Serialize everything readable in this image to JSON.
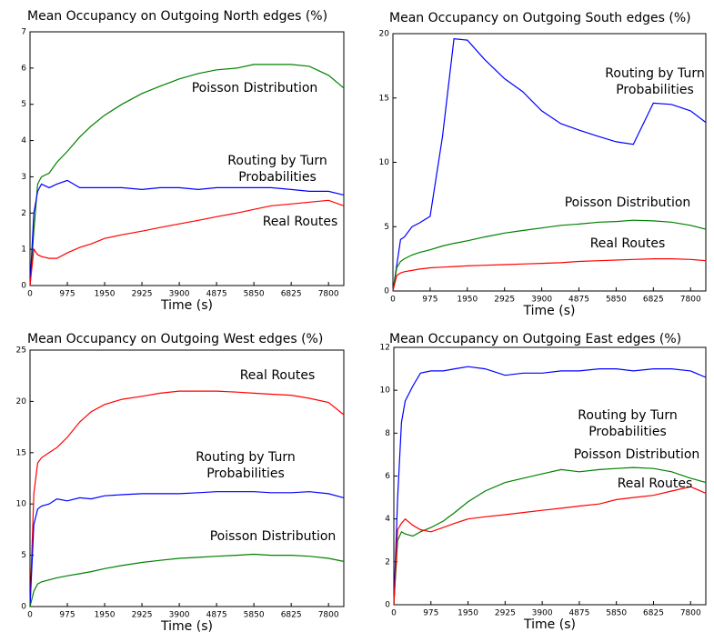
{
  "chart_data": [
    {
      "type": "line",
      "title": "Mean Occupancy on Outgoing North edges (%)",
      "x_label": "Time (s)",
      "x": [
        0,
        100,
        200,
        300,
        500,
        700,
        975,
        1300,
        1600,
        1950,
        2400,
        2925,
        3400,
        3900,
        4400,
        4875,
        5400,
        5850,
        6300,
        6825,
        7300,
        7800,
        8200
      ],
      "xlim": [
        0,
        8200
      ],
      "xticks": [
        0,
        975,
        1950,
        2925,
        3900,
        4875,
        5850,
        6825,
        7800
      ],
      "ylim": [
        0,
        7
      ],
      "yticks": [
        0,
        1,
        2,
        3,
        4,
        5,
        6,
        7
      ],
      "series": [
        {
          "name": "Poisson Distribution",
          "color": "#008000",
          "values": [
            0,
            1.5,
            2.8,
            3.0,
            3.1,
            3.4,
            3.7,
            4.1,
            4.4,
            4.7,
            5.0,
            5.3,
            5.5,
            5.7,
            5.85,
            5.95,
            6.0,
            6.1,
            6.1,
            6.1,
            6.05,
            5.8,
            5.45
          ]
        },
        {
          "name": "Routing by Turn Probabilities",
          "color": "#0000ff",
          "values": [
            0,
            2.0,
            2.6,
            2.8,
            2.7,
            2.8,
            2.9,
            2.7,
            2.7,
            2.7,
            2.7,
            2.65,
            2.7,
            2.7,
            2.65,
            2.7,
            2.7,
            2.7,
            2.7,
            2.65,
            2.6,
            2.6,
            2.5
          ]
        },
        {
          "name": "Real Routes",
          "color": "#ff0000",
          "values": [
            0,
            1.0,
            0.85,
            0.8,
            0.75,
            0.75,
            0.9,
            1.05,
            1.15,
            1.3,
            1.4,
            1.5,
            1.6,
            1.7,
            1.8,
            1.9,
            2.0,
            2.1,
            2.2,
            2.25,
            2.3,
            2.35,
            2.2
          ]
        }
      ]
    },
    {
      "type": "line",
      "title": "Mean Occupancy on Outgoing South edges (%)",
      "x_label": "Time (s)",
      "x": [
        0,
        100,
        200,
        300,
        500,
        700,
        975,
        1300,
        1600,
        1950,
        2400,
        2925,
        3400,
        3900,
        4400,
        4875,
        5400,
        5850,
        6300,
        6825,
        7300,
        7800,
        8200
      ],
      "xlim": [
        0,
        8200
      ],
      "xticks": [
        0,
        975,
        1950,
        2925,
        3900,
        4875,
        5850,
        6825,
        7800
      ],
      "ylim": [
        0,
        20
      ],
      "yticks": [
        0,
        5,
        10,
        15,
        20
      ],
      "series": [
        {
          "name": "Routing by Turn Probabilities",
          "color": "#0000ff",
          "values": [
            0,
            2,
            4,
            4.2,
            5,
            5.3,
            5.8,
            12,
            19.6,
            19.5,
            18,
            16.5,
            15.5,
            14,
            13,
            12.5,
            12,
            11.6,
            11.4,
            14.6,
            14.5,
            14,
            13.1
          ]
        },
        {
          "name": "Poisson Distribution",
          "color": "#008000",
          "values": [
            0,
            1.8,
            2.3,
            2.5,
            2.8,
            3.0,
            3.2,
            3.5,
            3.7,
            3.9,
            4.2,
            4.5,
            4.7,
            4.9,
            5.1,
            5.2,
            5.35,
            5.4,
            5.5,
            5.45,
            5.35,
            5.1,
            4.8
          ]
        },
        {
          "name": "Real Routes",
          "color": "#ff0000",
          "values": [
            0,
            1.2,
            1.4,
            1.5,
            1.6,
            1.7,
            1.8,
            1.85,
            1.9,
            1.95,
            2.0,
            2.05,
            2.1,
            2.15,
            2.2,
            2.3,
            2.35,
            2.4,
            2.45,
            2.5,
            2.5,
            2.45,
            2.35
          ]
        }
      ]
    },
    {
      "type": "line",
      "title": "Mean Occupancy on Outgoing West edges (%)",
      "x_label": "Time (s)",
      "x": [
        0,
        100,
        200,
        300,
        500,
        700,
        975,
        1300,
        1600,
        1950,
        2400,
        2925,
        3400,
        3900,
        4400,
        4875,
        5400,
        5850,
        6300,
        6825,
        7300,
        7800,
        8200
      ],
      "xlim": [
        0,
        8200
      ],
      "xticks": [
        0,
        975,
        1950,
        2925,
        3900,
        4875,
        5850,
        6825,
        7800
      ],
      "ylim": [
        0,
        25
      ],
      "yticks": [
        0,
        5,
        10,
        15,
        20,
        25
      ],
      "series": [
        {
          "name": "Real Routes",
          "color": "#ff0000",
          "values": [
            0,
            11,
            14,
            14.5,
            15,
            15.5,
            16.5,
            18,
            19,
            19.7,
            20.2,
            20.5,
            20.8,
            21,
            21,
            21,
            20.9,
            20.8,
            20.7,
            20.6,
            20.3,
            19.9,
            18.7
          ]
        },
        {
          "name": "Routing by Turn Probabilities",
          "color": "#0000ff",
          "values": [
            0,
            8,
            9.5,
            9.8,
            10,
            10.5,
            10.3,
            10.6,
            10.5,
            10.8,
            10.9,
            11,
            11,
            11,
            11.1,
            11.2,
            11.2,
            11.2,
            11.1,
            11.1,
            11.2,
            11,
            10.6
          ]
        },
        {
          "name": "Poisson Distribution",
          "color": "#008000",
          "values": [
            0,
            1.5,
            2.2,
            2.4,
            2.6,
            2.8,
            3.0,
            3.2,
            3.4,
            3.7,
            4.0,
            4.3,
            4.5,
            4.7,
            4.8,
            4.9,
            5.0,
            5.1,
            5.0,
            5.0,
            4.9,
            4.7,
            4.4
          ]
        }
      ]
    },
    {
      "type": "line",
      "title": "Mean Occupancy on Outgoing East edges (%)",
      "x_label": "Time (s)",
      "x": [
        0,
        100,
        200,
        300,
        500,
        700,
        975,
        1300,
        1600,
        1950,
        2400,
        2925,
        3400,
        3900,
        4400,
        4875,
        5400,
        5850,
        6300,
        6825,
        7300,
        7800,
        8200
      ],
      "xlim": [
        0,
        8200
      ],
      "xticks": [
        0,
        975,
        1950,
        2925,
        3900,
        4875,
        5850,
        6825,
        7800
      ],
      "ylim": [
        0,
        12
      ],
      "yticks": [
        0,
        2,
        4,
        6,
        8,
        10,
        12
      ],
      "series": [
        {
          "name": "Routing by Turn Probabilities",
          "color": "#0000ff",
          "values": [
            0,
            5,
            8.5,
            9.5,
            10.2,
            10.8,
            10.9,
            10.9,
            11.0,
            11.1,
            11.0,
            10.7,
            10.8,
            10.8,
            10.9,
            10.9,
            11.0,
            11.0,
            10.9,
            11.0,
            11.0,
            10.9,
            10.6
          ]
        },
        {
          "name": "Poisson Distribution",
          "color": "#008000",
          "values": [
            0,
            3.0,
            3.4,
            3.3,
            3.2,
            3.4,
            3.6,
            3.9,
            4.3,
            4.8,
            5.3,
            5.7,
            5.9,
            6.1,
            6.3,
            6.2,
            6.3,
            6.35,
            6.4,
            6.35,
            6.2,
            5.9,
            5.7
          ]
        },
        {
          "name": "Real Routes",
          "color": "#ff0000",
          "values": [
            0,
            3.5,
            3.8,
            4.0,
            3.7,
            3.5,
            3.4,
            3.6,
            3.8,
            4.0,
            4.1,
            4.2,
            4.3,
            4.4,
            4.5,
            4.6,
            4.7,
            4.9,
            5.0,
            5.1,
            5.3,
            5.5,
            5.2
          ]
        }
      ]
    }
  ]
}
